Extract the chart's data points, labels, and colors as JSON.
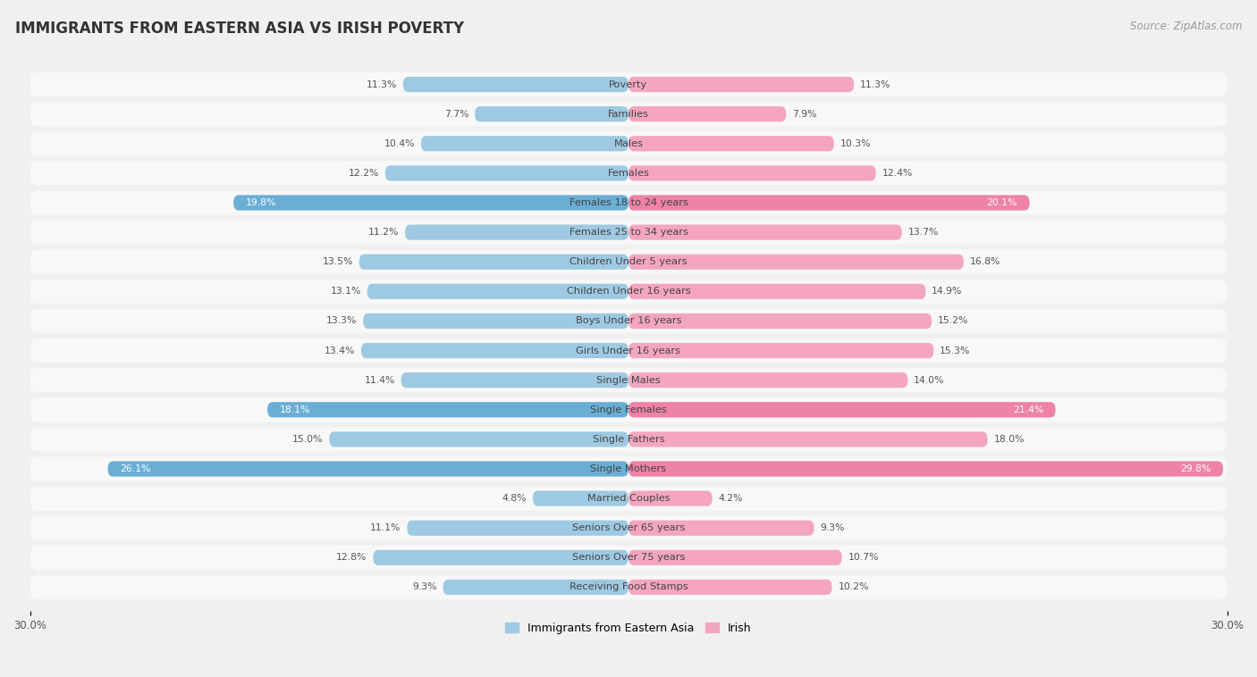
{
  "title": "IMMIGRANTS FROM EASTERN ASIA VS IRISH POVERTY",
  "source": "Source: ZipAtlas.com",
  "categories": [
    "Poverty",
    "Families",
    "Males",
    "Females",
    "Females 18 to 24 years",
    "Females 25 to 34 years",
    "Children Under 5 years",
    "Children Under 16 years",
    "Boys Under 16 years",
    "Girls Under 16 years",
    "Single Males",
    "Single Females",
    "Single Fathers",
    "Single Mothers",
    "Married Couples",
    "Seniors Over 65 years",
    "Seniors Over 75 years",
    "Receiving Food Stamps"
  ],
  "left_values": [
    11.3,
    7.7,
    10.4,
    12.2,
    19.8,
    11.2,
    13.5,
    13.1,
    13.3,
    13.4,
    11.4,
    18.1,
    15.0,
    26.1,
    4.8,
    11.1,
    12.8,
    9.3
  ],
  "right_values": [
    11.3,
    7.9,
    10.3,
    12.4,
    20.1,
    13.7,
    16.8,
    14.9,
    15.2,
    15.3,
    14.0,
    21.4,
    18.0,
    29.8,
    4.2,
    9.3,
    10.7,
    10.2
  ],
  "left_color_normal": "#9ec9e2",
  "left_color_highlight": "#6aaed6",
  "right_color_normal": "#f4a6be",
  "right_color_highlight": "#ee82a8",
  "highlight_indices": [
    4,
    11,
    13
  ],
  "axis_max": 30.0,
  "left_label": "Immigrants from Eastern Asia",
  "right_label": "Irish",
  "background_color": "#f0f0f0",
  "bar_background": "#e8e8e8",
  "row_bg_color": "#f8f8f8",
  "title_fontsize": 12,
  "label_fontsize": 8.5,
  "source_fontsize": 8.5
}
